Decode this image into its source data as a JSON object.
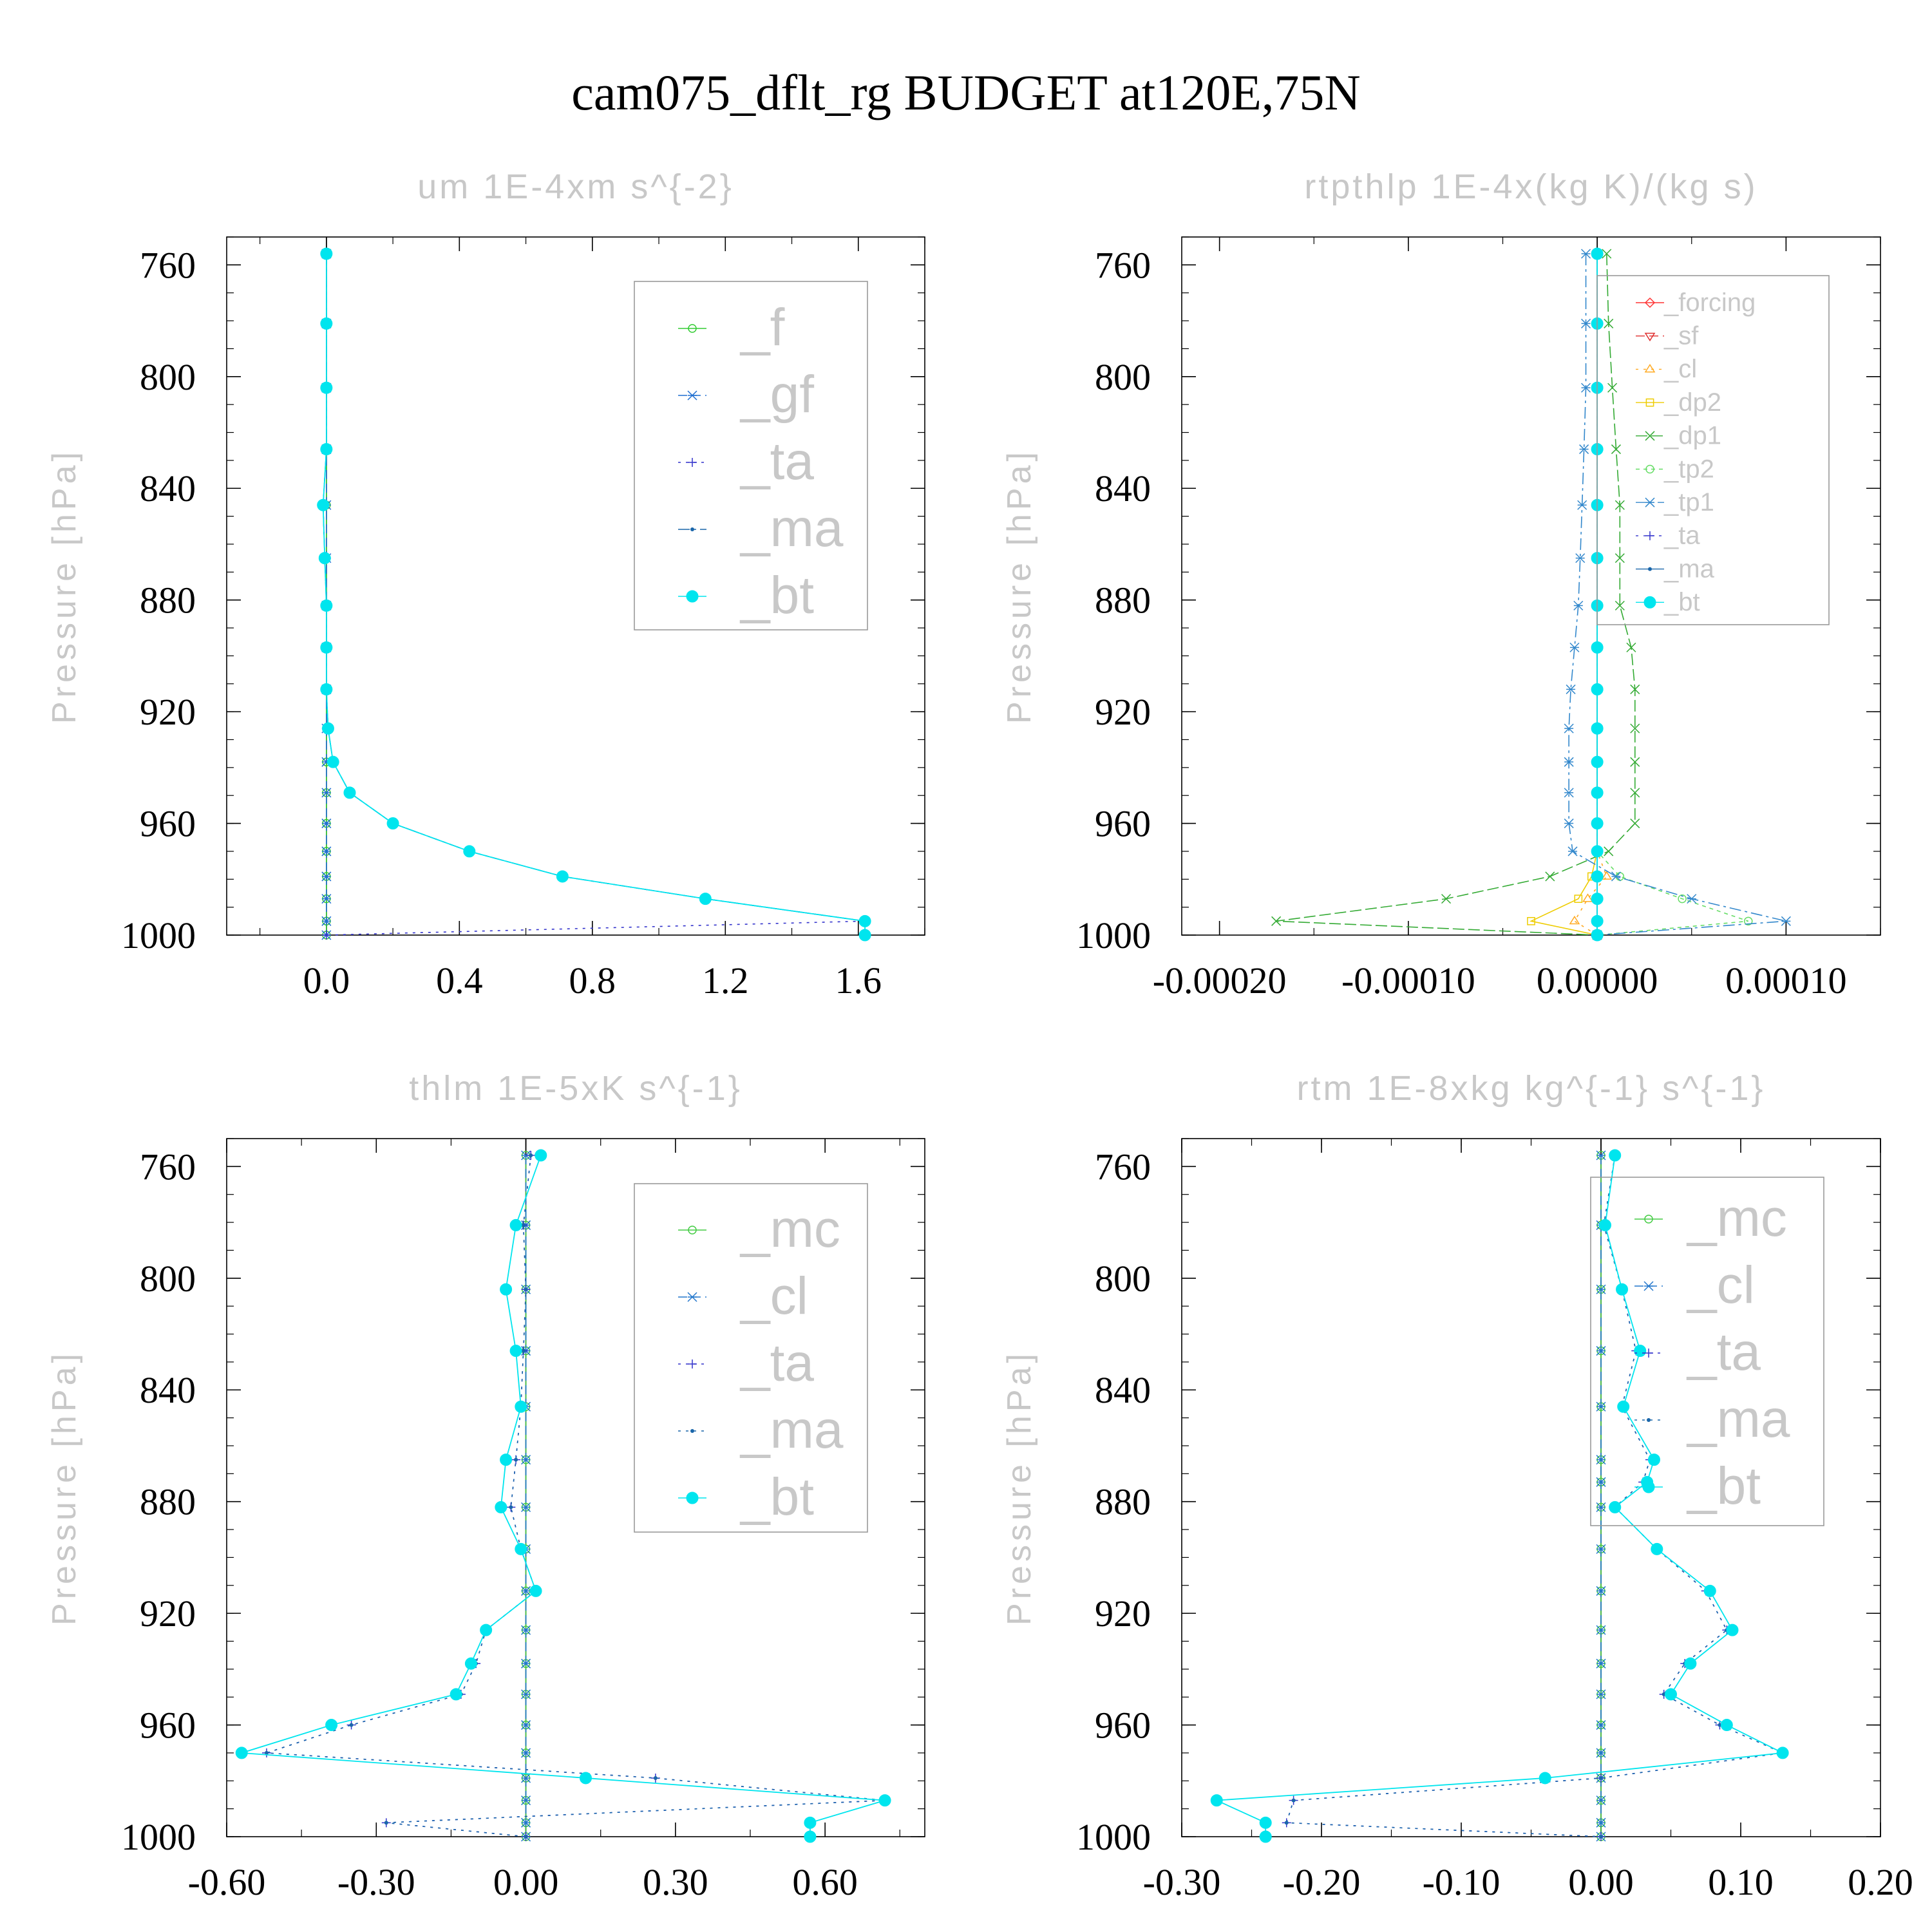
{
  "title": "cam075_dflt_rg  BUDGET at120E,75N",
  "colors": {
    "f": "#33cc33",
    "gf": "#1f6fd0",
    "ta": "#3333cc",
    "ma": "#1a66aa",
    "bt": "#00e5ee",
    "mc": "#44cc44",
    "cl": "#2277cc",
    "forcing": "#ff3333",
    "sf": "#e03030",
    "cl_orange": "#ffaa22",
    "dp2": "#eecc00",
    "dp1": "#33aa33",
    "tp2": "#66dd66",
    "tp1": "#3388cc"
  },
  "chart_data": [
    {
      "id": "um",
      "type": "line",
      "title": "um   1E-4xm s^{-2}",
      "ylabel": "Pressure [hPa]",
      "xlim": [
        -0.3,
        1.8
      ],
      "ylim": [
        1000,
        750
      ],
      "y_reversed": true,
      "xticks": [
        "0.0",
        "0.4",
        "0.8",
        "1.2",
        "1.6"
      ],
      "xtick_values": [
        0.0,
        0.4,
        0.8,
        1.2,
        1.6
      ],
      "yticks": [
        "760",
        "800",
        "840",
        "880",
        "920",
        "960",
        "1000"
      ],
      "ytick_values": [
        760,
        800,
        840,
        880,
        920,
        960,
        1000
      ],
      "y": [
        756,
        781,
        804,
        826,
        846,
        865,
        882,
        897,
        912,
        926,
        938,
        949,
        960,
        970,
        979,
        987,
        995,
        1000
      ],
      "legend": {
        "position": "upper-right",
        "entries": [
          "_f",
          "_gf",
          "_ta",
          "_ma",
          "_bt"
        ]
      },
      "series": [
        {
          "name": "_f",
          "color_key": "f",
          "marker": "circle-open",
          "dash": "",
          "values": [
            0,
            0,
            0,
            0,
            0,
            0,
            0,
            0,
            0,
            0,
            0,
            0,
            0,
            0,
            0,
            0,
            0,
            0
          ]
        },
        {
          "name": "_gf",
          "color_key": "gf",
          "marker": "star",
          "dash": "14 7",
          "values": [
            0,
            0,
            0,
            0,
            0,
            0,
            0,
            0,
            0,
            0,
            0,
            0,
            0,
            0,
            0,
            0,
            0,
            0
          ]
        },
        {
          "name": "_ta",
          "color_key": "ta",
          "marker": "plus",
          "dash": "4 8",
          "values": [
            0,
            0,
            0,
            0,
            -0.01,
            -0.005,
            0,
            0,
            0,
            0.005,
            0.02,
            0.07,
            0.2,
            0.43,
            0.71,
            1.14,
            1.62,
            0
          ]
        },
        {
          "name": "_ma",
          "color_key": "ma",
          "marker": "dot",
          "dash": "18 6 4 6",
          "values": [
            0,
            0,
            0,
            0,
            -0.01,
            -0.005,
            0,
            0,
            0,
            0.005,
            0.02,
            0.07,
            0.2,
            0.43,
            0.71,
            1.14,
            1.62,
            1.62
          ]
        },
        {
          "name": "_bt",
          "color_key": "bt",
          "marker": "filled-circle",
          "dash": "",
          "values": [
            0,
            0,
            0,
            0,
            -0.01,
            -0.005,
            0,
            0,
            0,
            0.005,
            0.02,
            0.07,
            0.2,
            0.43,
            0.71,
            1.14,
            1.62,
            1.62
          ]
        }
      ]
    },
    {
      "id": "rtpthlp",
      "type": "line",
      "title": "rtpthlp   1E-4x(kg K)/(kg s)",
      "ylabel": "Pressure [hPa]",
      "xlim": [
        -0.00022,
        0.00015
      ],
      "ylim": [
        1000,
        750
      ],
      "y_reversed": true,
      "xticks": [
        "-0.00020",
        "-0.00010",
        "0.00000",
        "0.00010"
      ],
      "xtick_values": [
        -0.0002,
        -0.0001,
        0.0,
        0.0001
      ],
      "yticks": [
        "760",
        "800",
        "840",
        "880",
        "920",
        "960",
        "1000"
      ],
      "ytick_values": [
        760,
        800,
        840,
        880,
        920,
        960,
        1000
      ],
      "y": [
        756,
        781,
        804,
        826,
        846,
        865,
        882,
        897,
        912,
        926,
        938,
        949,
        960,
        970,
        979,
        987,
        995,
        1000
      ],
      "legend": {
        "position": "upper-right",
        "entries": [
          "_forcing",
          "_sf",
          "_cl",
          "_dp2",
          "_dp1",
          "_tp2",
          "_tp1",
          "_ta",
          "_ma",
          "_bt"
        ]
      },
      "series": [
        {
          "name": "_forcing",
          "color_key": "forcing",
          "marker": "diamond",
          "dash": "",
          "values": [
            0,
            0,
            0,
            0,
            0,
            0,
            0,
            0,
            0,
            0,
            0,
            0,
            0,
            0,
            0,
            0,
            0,
            0
          ]
        },
        {
          "name": "_sf",
          "color_key": "sf",
          "marker": "triangle-down",
          "dash": "14 7",
          "values": [
            0,
            0,
            0,
            0,
            0,
            0,
            0,
            0,
            0,
            0,
            0,
            0,
            0,
            0,
            0,
            0,
            0,
            0
          ]
        },
        {
          "name": "_cl",
          "color_key": "cl_orange",
          "marker": "triangle-up",
          "dash": "4 8",
          "values": [
            0,
            0,
            0,
            0,
            0,
            0,
            0,
            0,
            0,
            0,
            0,
            0,
            0,
            0,
            5e-06,
            -5e-06,
            -1.2e-05,
            0
          ]
        },
        {
          "name": "_dp2",
          "color_key": "dp2",
          "marker": "square",
          "dash": "",
          "values": [
            0,
            0,
            0,
            0,
            0,
            0,
            0,
            0,
            0,
            0,
            0,
            0,
            0,
            0,
            -3e-06,
            -1e-05,
            -3.5e-05,
            0
          ]
        },
        {
          "name": "_dp1",
          "color_key": "dp1",
          "marker": "x",
          "dash": "18 6",
          "values": [
            5e-06,
            6e-06,
            8e-06,
            1e-05,
            1.2e-05,
            1.2e-05,
            1.2e-05,
            1.8e-05,
            2e-05,
            2e-05,
            2e-05,
            2e-05,
            2e-05,
            6e-06,
            -2.5e-05,
            -8e-05,
            -0.00017,
            0
          ]
        },
        {
          "name": "_tp2",
          "color_key": "tp2",
          "marker": "circle-open",
          "dash": "6 6",
          "values": [
            0,
            0,
            0,
            0,
            0,
            0,
            0,
            0,
            0,
            0,
            0,
            0,
            0,
            0,
            1.2e-05,
            4.5e-05,
            8e-05,
            0
          ]
        },
        {
          "name": "_tp1",
          "color_key": "tp1",
          "marker": "star",
          "dash": "18 6 4 6",
          "values": [
            -6e-06,
            -6e-06,
            -6e-06,
            -7e-06,
            -8e-06,
            -9e-06,
            -1e-05,
            -1.2e-05,
            -1.4e-05,
            -1.5e-05,
            -1.5e-05,
            -1.5e-05,
            -1.5e-05,
            -1.3e-05,
            1e-05,
            5e-05,
            0.0001,
            0
          ]
        },
        {
          "name": "_ta",
          "color_key": "ta",
          "marker": "plus",
          "dash": "4 8",
          "values": [
            0,
            0,
            0,
            0,
            0,
            0,
            0,
            0,
            0,
            0,
            0,
            0,
            0,
            0,
            0,
            0,
            0,
            0
          ]
        },
        {
          "name": "_ma",
          "color_key": "ma",
          "marker": "dot",
          "dash": "",
          "values": [
            0,
            0,
            0,
            0,
            0,
            0,
            0,
            0,
            0,
            0,
            0,
            0,
            0,
            0,
            0,
            0,
            0,
            0
          ]
        },
        {
          "name": "_bt",
          "color_key": "bt",
          "marker": "filled-circle",
          "dash": "",
          "values": [
            0,
            0,
            0,
            0,
            0,
            0,
            0,
            0,
            0,
            0,
            0,
            0,
            0,
            0,
            0,
            0,
            0,
            0
          ]
        }
      ]
    },
    {
      "id": "thlm",
      "type": "line",
      "title": "thlm   1E-5xK s^{-1}",
      "ylabel": "Pressure [hPa]",
      "xlim": [
        -0.6,
        0.8
      ],
      "ylim": [
        1000,
        750
      ],
      "y_reversed": true,
      "xticks": [
        "-0.60",
        "-0.30",
        "0.00",
        "0.30",
        "0.60"
      ],
      "xtick_values": [
        -0.6,
        -0.3,
        0.0,
        0.3,
        0.6
      ],
      "yticks": [
        "760",
        "800",
        "840",
        "880",
        "920",
        "960",
        "1000"
      ],
      "ytick_values": [
        760,
        800,
        840,
        880,
        920,
        960,
        1000
      ],
      "y": [
        756,
        781,
        804,
        826,
        846,
        865,
        882,
        897,
        912,
        926,
        938,
        949,
        960,
        970,
        979,
        987,
        995,
        1000
      ],
      "legend": {
        "position": "upper-right",
        "entries": [
          "_mc",
          "_cl",
          "_ta",
          "_ma",
          "_bt"
        ]
      },
      "series": [
        {
          "name": "_mc",
          "color_key": "mc",
          "marker": "circle-open",
          "dash": "",
          "values": [
            0,
            0,
            0,
            0,
            0,
            0,
            0,
            0,
            0,
            0,
            0,
            0,
            0,
            0,
            0,
            0,
            0,
            0
          ]
        },
        {
          "name": "_cl",
          "color_key": "cl",
          "marker": "star",
          "dash": "14 7",
          "values": [
            0,
            0,
            0,
            0,
            0,
            0,
            0,
            0,
            0,
            0,
            0,
            0,
            0,
            0,
            0,
            0,
            0,
            0
          ]
        },
        {
          "name": "_ta",
          "color_key": "ta",
          "marker": "plus",
          "dash": "4 8",
          "values": [
            0.01,
            -0.005,
            0,
            -0.005,
            -0.01,
            -0.02,
            -0.03,
            -0.01,
            0.02,
            -0.08,
            -0.1,
            -0.13,
            -0.35,
            -0.52,
            0.26,
            0.72,
            -0.28,
            0
          ]
        },
        {
          "name": "_ma",
          "color_key": "ma",
          "marker": "dot",
          "dash": "4 8",
          "values": [
            0.01,
            -0.005,
            0,
            -0.005,
            -0.01,
            -0.02,
            -0.03,
            -0.01,
            0.02,
            -0.08,
            -0.1,
            -0.13,
            -0.35,
            -0.52,
            0.26,
            0.72,
            -0.28,
            0
          ]
        },
        {
          "name": "_bt",
          "color_key": "bt",
          "marker": "filled-circle",
          "dash": "",
          "values": [
            0.03,
            -0.02,
            -0.04,
            -0.02,
            -0.01,
            -0.04,
            -0.05,
            -0.01,
            0.02,
            -0.08,
            -0.11,
            -0.14,
            -0.39,
            -0.57,
            0.12,
            0.72,
            0.57,
            0.57
          ]
        }
      ]
    },
    {
      "id": "rtm",
      "type": "line",
      "title": "rtm   1E-8xkg kg^{-1} s^{-1}",
      "ylabel": "Pressure [hPa]",
      "xlim": [
        -0.3,
        0.2
      ],
      "ylim": [
        1000,
        750
      ],
      "y_reversed": true,
      "xticks": [
        "-0.30",
        "-0.20",
        "-0.10",
        "0.00",
        "0.10",
        "0.20"
      ],
      "xtick_values": [
        -0.3,
        -0.2,
        -0.1,
        0.0,
        0.1,
        0.2
      ],
      "yticks": [
        "760",
        "800",
        "840",
        "880",
        "920",
        "960",
        "1000"
      ],
      "ytick_values": [
        760,
        800,
        840,
        880,
        920,
        960,
        1000
      ],
      "y": [
        756,
        781,
        804,
        826,
        846,
        865,
        873,
        882,
        897,
        912,
        926,
        938,
        949,
        960,
        970,
        979,
        987,
        995,
        1000
      ],
      "legend": {
        "position": "upper-right",
        "entries": [
          "_mc",
          "_cl",
          "_ta",
          "_ma",
          "_bt"
        ]
      },
      "series": [
        {
          "name": "_mc",
          "color_key": "mc",
          "marker": "circle-open",
          "dash": "",
          "values": [
            0,
            0,
            0,
            0,
            0,
            0,
            0,
            0,
            0,
            0,
            0,
            0,
            0,
            0,
            0,
            0,
            0,
            0,
            0
          ]
        },
        {
          "name": "_cl",
          "color_key": "cl",
          "marker": "star",
          "dash": "14 7",
          "values": [
            0,
            0,
            0,
            0,
            0,
            0,
            0,
            0,
            0,
            0,
            0,
            0,
            0,
            0,
            0,
            0,
            0,
            0,
            0
          ]
        },
        {
          "name": "_ta",
          "color_key": "ta",
          "marker": "plus",
          "dash": "4 8",
          "values": [
            0.01,
            0.002,
            0.015,
            0.025,
            0.015,
            0.035,
            0.03,
            0.01,
            0.04,
            0.075,
            0.09,
            0.06,
            0.045,
            0.085,
            0.13,
            0.0,
            -0.22,
            -0.225,
            0
          ]
        },
        {
          "name": "_ma",
          "color_key": "ma",
          "marker": "dot",
          "dash": "4 8",
          "values": [
            0.01,
            0.002,
            0.015,
            0.025,
            0.015,
            0.035,
            0.03,
            0.01,
            0.04,
            0.075,
            0.09,
            0.06,
            0.045,
            0.085,
            0.13,
            0.0,
            -0.22,
            -0.225,
            0
          ]
        },
        {
          "name": "_bt",
          "color_key": "bt",
          "marker": "filled-circle",
          "dash": "",
          "values": [
            0.01,
            0.003,
            0.015,
            0.028,
            0.016,
            0.038,
            0.033,
            0.01,
            0.04,
            0.078,
            0.094,
            0.064,
            0.05,
            0.09,
            0.13,
            -0.04,
            -0.275,
            -0.24,
            -0.24
          ]
        }
      ]
    }
  ]
}
